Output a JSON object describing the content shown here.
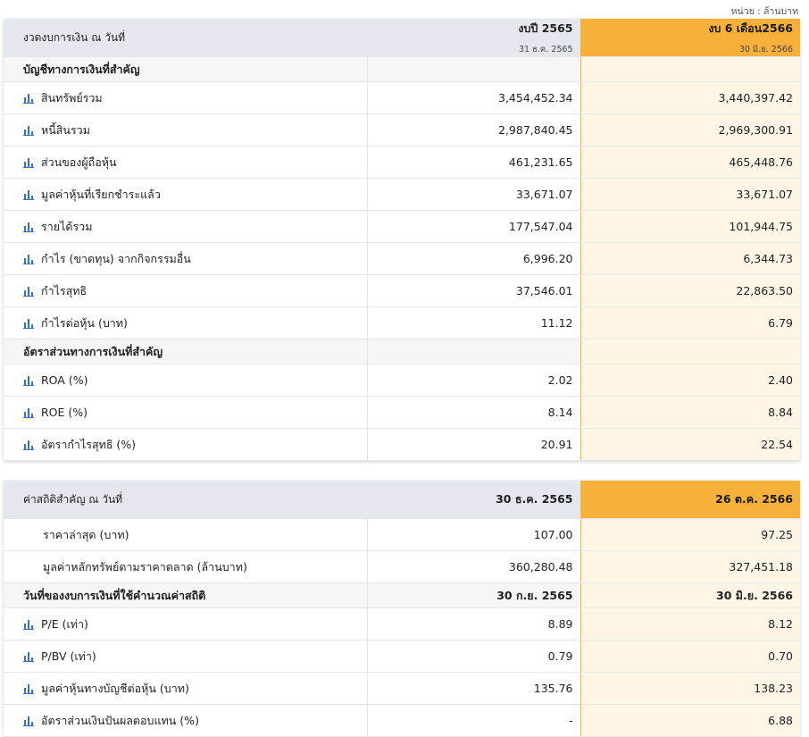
{
  "unit_note": "หน่วย : ล้านบาท",
  "financial": {
    "header": {
      "label": "งวดงบการเงิน ณ วันที่",
      "col1_title": "งบปี 2565",
      "col1_date": "31 ธ.ค. 2565",
      "col2_title": "งบ 6 เดือน2566",
      "col2_date": "30 มิ.ย. 2566"
    },
    "section1": "บัญชีทางการเงินที่สำคัญ",
    "rows1": [
      {
        "label": "สินทรัพย์รวม",
        "v1": "3,454,452.34",
        "v2": "3,440,397.42"
      },
      {
        "label": "หนี้สินรวม",
        "v1": "2,987,840.45",
        "v2": "2,969,300.91"
      },
      {
        "label": "ส่วนของผู้ถือหุ้น",
        "v1": "461,231.65",
        "v2": "465,448.76"
      },
      {
        "label": "มูลค่าหุ้นที่เรียกชำระแล้ว",
        "v1": "33,671.07",
        "v2": "33,671.07"
      },
      {
        "label": "รายได้รวม",
        "v1": "177,547.04",
        "v2": "101,944.75"
      },
      {
        "label": "กำไร (ขาดทุน) จากกิจกรรมอื่น",
        "v1": "6,996.20",
        "v2": "6,344.73"
      },
      {
        "label": "กำไรสุทธิ",
        "v1": "37,546.01",
        "v2": "22,863.50"
      },
      {
        "label": "กำไรต่อหุ้น (บาท)",
        "v1": "11.12",
        "v2": "6.79"
      }
    ],
    "section2": "อัตราส่วนทางการเงินที่สำคัญ",
    "rows2": [
      {
        "label": "ROA (%)",
        "v1": "2.02",
        "v2": "2.40"
      },
      {
        "label": "ROE (%)",
        "v1": "8.14",
        "v2": "8.84"
      },
      {
        "label": "อัตรากำไรสุทธิ (%)",
        "v1": "20.91",
        "v2": "22.54"
      }
    ]
  },
  "stats": {
    "header": {
      "label": "ค่าสถิติสำคัญ ณ วันที่",
      "col1": "30 ธ.ค. 2565",
      "col2": "26 ต.ค. 2566"
    },
    "rows_top": [
      {
        "label": "ราคาล่าสุด (บาท)",
        "v1": "107.00",
        "v2": "97.25"
      },
      {
        "label": "มูลค่าหลักทรัพย์ตามราคาตลาด (ล้านบาท)",
        "v1": "360,280.48",
        "v2": "327,451.18"
      }
    ],
    "section": {
      "label": "วันที่ของงบการเงินที่ใช้คำนวณค่าสถิติ",
      "v1": "30 ก.ย. 2565",
      "v2": "30 มิ.ย. 2566"
    },
    "rows": [
      {
        "label": "P/E (เท่า)",
        "v1": "8.89",
        "v2": "8.12"
      },
      {
        "label": "P/BV (เท่า)",
        "v1": "0.79",
        "v2": "0.70"
      },
      {
        "label": "มูลค่าหุ้นทางบัญชีต่อหุ้น (บาท)",
        "v1": "135.76",
        "v2": "138.23"
      },
      {
        "label": "อัตราส่วนเงินปันผลตอบแทน (%)",
        "v1": "-",
        "v2": "6.88"
      }
    ]
  },
  "colors": {
    "accent": "#f7b03a",
    "highlight_bg": "#fdf5e6",
    "header_bg": "#e4e8ee",
    "icon": "#2f73c2"
  }
}
